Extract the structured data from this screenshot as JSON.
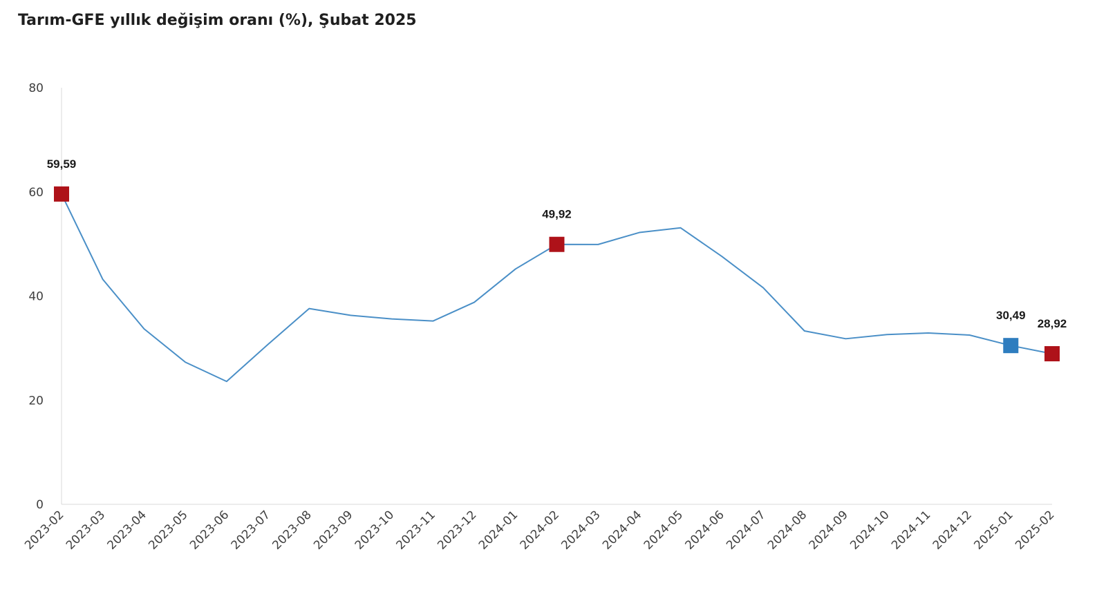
{
  "chart_data": {
    "type": "line",
    "title": "Tarım-GFE yıllık değişim oranı (%), Şubat 2025",
    "xlabel": "",
    "ylabel": "",
    "ylim": [
      0,
      80
    ],
    "yticks": [
      0,
      20,
      40,
      60,
      80
    ],
    "grid": false,
    "legend": "none",
    "categories": [
      "2023-02",
      "2023-03",
      "2023-04",
      "2023-05",
      "2023-06",
      "2023-07",
      "2023-08",
      "2023-09",
      "2023-10",
      "2023-11",
      "2023-12",
      "2024-01",
      "2024-02",
      "2024-03",
      "2024-04",
      "2024-05",
      "2024-06",
      "2024-07",
      "2024-08",
      "2024-09",
      "2024-10",
      "2024-11",
      "2024-12",
      "2025-01",
      "2025-02"
    ],
    "series": [
      {
        "values": [
          59.59,
          43.2,
          33.7,
          27.3,
          23.6,
          30.7,
          37.6,
          36.3,
          35.6,
          35.2,
          38.8,
          45.2,
          49.92,
          49.9,
          52.2,
          53.1,
          47.6,
          41.6,
          33.3,
          31.8,
          32.6,
          32.9,
          32.5,
          30.49,
          28.92
        ],
        "color": "#4a8fc7"
      }
    ],
    "highlights": [
      {
        "index": 0,
        "label": "59,59",
        "color": "#ae1219"
      },
      {
        "index": 12,
        "label": "49,92",
        "color": "#ae1219"
      },
      {
        "index": 23,
        "label": "30,49",
        "color": "#2e7dbf"
      },
      {
        "index": 24,
        "label": "28,92",
        "color": "#ae1219"
      }
    ]
  }
}
